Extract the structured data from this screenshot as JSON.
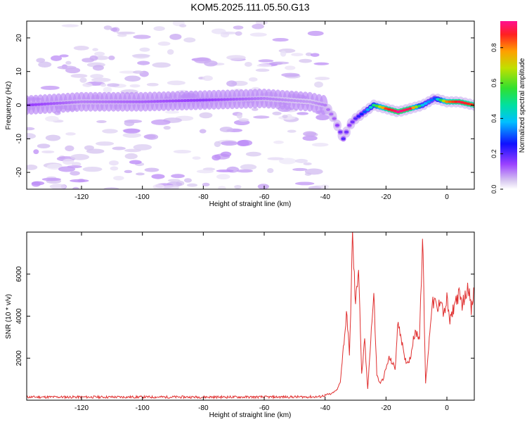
{
  "title": "KOM5.2025.111.05.50.G13",
  "colors": {
    "snr_line": "#e03030",
    "axes": "#000000"
  },
  "chart_data": [
    {
      "type": "heatmap",
      "xlabel": "Height of straight line (km)",
      "ylabel": "Frequency (Hz)",
      "xlim": [
        -138,
        9
      ],
      "ylim": [
        -25,
        25
      ],
      "x_ticks": [
        -120,
        -100,
        -80,
        -60,
        -40,
        -20,
        0
      ],
      "y_ticks": [
        -20,
        -10,
        0,
        10,
        20
      ],
      "colorbar": {
        "label": "Normalized spectral amplitude",
        "range": [
          0,
          0.95
        ],
        "ticks": [
          0.0,
          0.2,
          0.4,
          0.6,
          0.8
        ]
      },
      "ridge": {
        "x": [
          -138,
          -120,
          -100,
          -80,
          -60,
          -45,
          -40,
          -37,
          -34,
          -32,
          -30,
          -27,
          -24,
          -20,
          -16,
          -12,
          -8,
          -4,
          0,
          4,
          9
        ],
        "y": [
          0,
          1,
          1,
          1.5,
          2,
          1,
          0,
          -4,
          -10,
          -6,
          -4,
          -2,
          0,
          -1,
          -2,
          -1,
          0,
          2,
          1,
          1,
          0
        ],
        "amplitude": [
          0.15,
          0.1,
          0.12,
          0.15,
          0.1,
          0.08,
          0.1,
          0.12,
          0.2,
          0.15,
          0.2,
          0.3,
          0.5,
          0.85,
          0.95,
          0.9,
          0.4,
          0.3,
          0.8,
          0.9,
          0.85
        ]
      }
    },
    {
      "type": "line",
      "xlabel": "Height of straight line (km)",
      "ylabel": "SNR (10 * v/v)",
      "xlim": [
        -138,
        9
      ],
      "ylim": [
        0,
        8000
      ],
      "x_ticks": [
        -120,
        -100,
        -80,
        -60,
        -40,
        -20,
        0
      ],
      "y_ticks": [
        2000,
        4000,
        6000
      ],
      "series": [
        {
          "x": [
            -138,
            -120,
            -100,
            -80,
            -60,
            -42,
            -38,
            -36,
            -35,
            -34,
            -33,
            -32.5,
            -32,
            -31,
            -30,
            -29,
            -28,
            -27,
            -26,
            -25,
            -24,
            -23,
            -22,
            -21,
            -20,
            -19,
            -18,
            -17,
            -16,
            -15,
            -14,
            -13,
            -12,
            -11,
            -10,
            -9,
            -8,
            -7,
            -6,
            -5,
            -4,
            -3,
            -2,
            -1,
            0,
            1,
            2,
            3,
            4,
            5,
            6,
            7,
            8,
            9
          ],
          "y": [
            150,
            150,
            150,
            150,
            150,
            160,
            300,
            500,
            900,
            2500,
            4000,
            3500,
            2000,
            7800,
            4500,
            6500,
            1200,
            2800,
            500,
            3000,
            5000,
            1200,
            800,
            1000,
            1500,
            2000,
            1800,
            1500,
            3800,
            3000,
            2000,
            1800,
            2000,
            3000,
            3200,
            3000,
            7900,
            800,
            2500,
            4500,
            4700,
            4200,
            5000,
            4000,
            4800,
            3700,
            4300,
            4800,
            5000,
            4600,
            4900,
            5600,
            4200,
            5300
          ]
        }
      ]
    }
  ]
}
